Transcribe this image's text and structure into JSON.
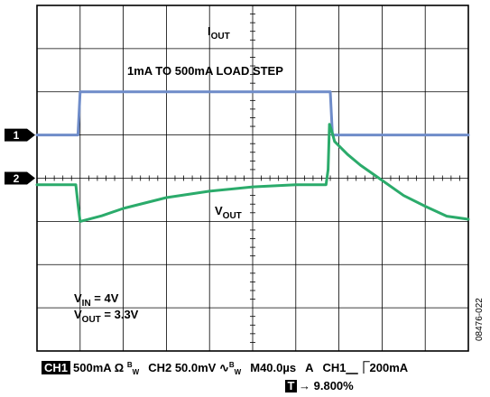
{
  "chart_data": {
    "type": "line",
    "title": "",
    "grid": true,
    "x_divisions": 10,
    "y_divisions": 8,
    "series": [
      {
        "name": "IOUT",
        "label_main": "I",
        "label_sub": "OUT",
        "color": "#6f8cc9",
        "x": [
          0,
          0.95,
          1.0,
          6.8,
          6.85,
          10
        ],
        "y": [
          1.0,
          1.0,
          2.0,
          2.0,
          1.0,
          1.0
        ]
      },
      {
        "name": "VOUT",
        "label_main": "V",
        "label_sub": "OUT",
        "color": "#2bab6b",
        "x": [
          0,
          0.9,
          0.95,
          1.0,
          1.5,
          2.0,
          3.0,
          4.0,
          5.0,
          6.0,
          6.7,
          6.75,
          6.78,
          6.83,
          6.9,
          7.2,
          7.5,
          8.0,
          8.5,
          9.0,
          9.5,
          10
        ],
        "y": [
          -0.15,
          -0.15,
          -0.6,
          -1.0,
          -0.87,
          -0.7,
          -0.45,
          -0.3,
          -0.2,
          -0.15,
          -0.15,
          0.2,
          1.25,
          1.1,
          0.85,
          0.55,
          0.3,
          -0.05,
          -0.4,
          -0.65,
          -0.88,
          -0.95
        ]
      }
    ],
    "annotations": {
      "load_step": "1mA TO 500mA LOAD STEP",
      "vin_main": "V",
      "vin_sub": "IN",
      "vin_value": " = 4V",
      "vout_main": "V",
      "vout_sub": "OUT",
      "vout_value": " = 3.3V"
    },
    "channel_markers": [
      {
        "label": "1",
        "y": 1
      },
      {
        "label": "2",
        "y": 0
      }
    ]
  },
  "status": {
    "ch1_badge": "CH1",
    "ch1_scale": "500mA",
    "ch1_ohm": "Ω",
    "bw_b": "B",
    "bw_w": "W",
    "ch2_scale": "CH2 50.0mV",
    "ch2_coupling": "∿",
    "time_div": "M40.0µs",
    "acq": "A",
    "trig_source": "CH1",
    "trig_edge": "⎽⎾",
    "trig_level": "200mA",
    "t_badge": "T",
    "t_arrow": "→",
    "t_position": "9.800%"
  },
  "figure_id": "08476-022"
}
